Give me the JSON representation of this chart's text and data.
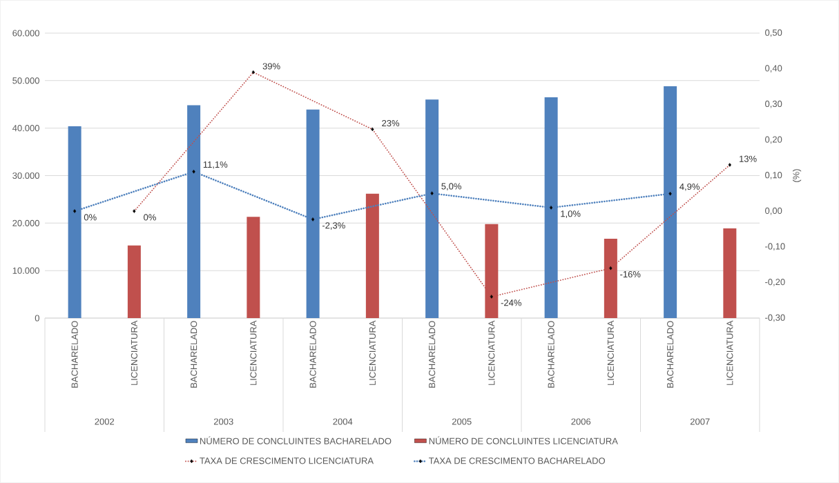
{
  "chart_data": {
    "type": "bar",
    "categories": [
      "BACHARELADO",
      "LICENCIATURA",
      "BACHARELADO",
      "LICENCIATURA",
      "BACHARELADO",
      "LICENCIATURA",
      "BACHARELADO",
      "LICENCIATURA",
      "BACHARELADO",
      "LICENCIATURA",
      "BACHARELADO",
      "LICENCIATURA"
    ],
    "annotations": [
      "2002",
      "2003",
      "2004",
      "2005",
      "2006",
      "2007"
    ],
    "series": [
      {
        "name": "NÚMERO DE CONCLUINTES BACHARELADO",
        "color": "#4f81bd",
        "values": [
          40400,
          null,
          44800,
          null,
          43900,
          null,
          46000,
          null,
          46500,
          null,
          48800,
          null
        ]
      },
      {
        "name": "NÚMERO DE CONCLUINTES LICENCIATURA",
        "color": "#c0504d",
        "values": [
          null,
          15300,
          null,
          21300,
          null,
          26200,
          null,
          19800,
          null,
          16700,
          null,
          18900
        ]
      },
      {
        "name": "TAXA DE CRESCIMENTO LICENCIATURA",
        "type": "line",
        "axis": "y2",
        "color": "#c0504d",
        "values": [
          null,
          0,
          null,
          0.39,
          null,
          0.23,
          null,
          -0.24,
          null,
          -0.16,
          null,
          0.13
        ],
        "value_labels": [
          null,
          "0%",
          null,
          "39%",
          null,
          "23%",
          null,
          "-24%",
          null,
          "-16%",
          null,
          "13%"
        ]
      },
      {
        "name": "TAXA DE CRESCIMENTO BACHARELADO",
        "type": "line",
        "axis": "y2",
        "color": "#4f81bd",
        "values": [
          0,
          null,
          0.111,
          null,
          -0.023,
          null,
          0.05,
          null,
          0.01,
          null,
          0.049,
          null
        ],
        "value_labels": [
          "0%",
          null,
          "11,1%",
          null,
          "-2,3%",
          null,
          "5,0%",
          null,
          "1,0%",
          null,
          "4,9%",
          null
        ]
      }
    ],
    "ylim": [
      0,
      60000
    ],
    "yticks": [
      {
        "value": 0,
        "label": "0"
      },
      {
        "value": 10000,
        "label": "10.000"
      },
      {
        "value": 20000,
        "label": "20.000"
      },
      {
        "value": 30000,
        "label": "30.000"
      },
      {
        "value": 40000,
        "label": "40.000"
      },
      {
        "value": 50000,
        "label": "50.000"
      },
      {
        "value": 60000,
        "label": "60.000"
      }
    ],
    "y2lim": [
      -0.3,
      0.5
    ],
    "y2ticks": [
      {
        "value": -0.3,
        "label": "-0,30"
      },
      {
        "value": -0.2,
        "label": "-0,20"
      },
      {
        "value": -0.1,
        "label": "-0,10"
      },
      {
        "value": 0,
        "label": "0,00"
      },
      {
        "value": 0.1,
        "label": "0,10"
      },
      {
        "value": 0.2,
        "label": "0,20"
      },
      {
        "value": 0.3,
        "label": "0,30"
      },
      {
        "value": 0.4,
        "label": "0,40"
      },
      {
        "value": 0.5,
        "label": "0,50"
      }
    ],
    "y2label": "(%)",
    "grid": "y",
    "legend": "bottom",
    "marker": "diamond",
    "line_style": "dotted"
  }
}
